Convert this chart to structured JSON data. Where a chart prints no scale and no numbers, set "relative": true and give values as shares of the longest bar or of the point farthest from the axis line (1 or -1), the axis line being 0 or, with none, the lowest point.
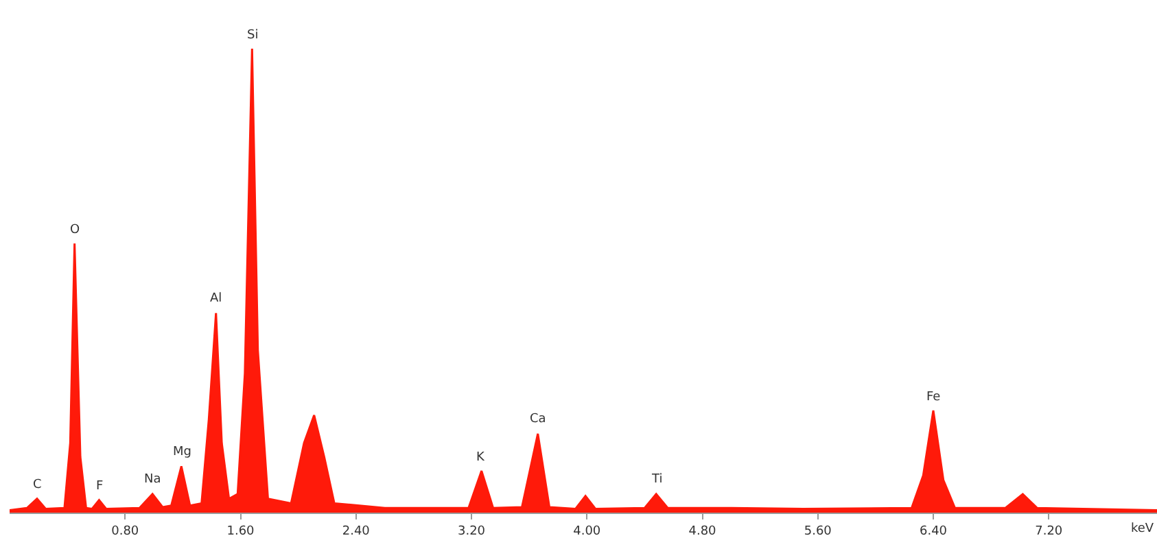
{
  "chart_data": {
    "type": "area",
    "relative": true,
    "xlabel": "keV",
    "color": "#ff1a0a",
    "x": [
      0.0,
      0.12,
      0.19,
      0.25,
      0.38,
      0.42,
      0.45,
      0.49,
      0.53,
      0.57,
      0.62,
      0.67,
      0.9,
      0.99,
      1.06,
      1.12,
      1.19,
      1.25,
      1.33,
      1.38,
      1.43,
      1.47,
      1.52,
      1.58,
      1.63,
      1.68,
      1.72,
      1.79,
      1.95,
      2.04,
      2.11,
      2.18,
      2.25,
      2.6,
      3.0,
      3.18,
      3.27,
      3.35,
      3.55,
      3.66,
      3.74,
      3.92,
      3.99,
      4.06,
      4.4,
      4.48,
      4.56,
      5.0,
      5.5,
      6.25,
      6.33,
      6.4,
      6.47,
      6.55,
      6.9,
      7.02,
      7.12,
      7.95
    ],
    "values": [
      0.005,
      0.01,
      0.03,
      0.008,
      0.01,
      0.15,
      0.58,
      0.12,
      0.01,
      0.008,
      0.027,
      0.008,
      0.01,
      0.04,
      0.012,
      0.015,
      0.1,
      0.015,
      0.02,
      0.2,
      0.43,
      0.15,
      0.03,
      0.04,
      0.3,
      1.0,
      0.35,
      0.03,
      0.02,
      0.15,
      0.21,
      0.12,
      0.02,
      0.01,
      0.01,
      0.01,
      0.09,
      0.01,
      0.012,
      0.17,
      0.012,
      0.008,
      0.036,
      0.008,
      0.01,
      0.04,
      0.01,
      0.01,
      0.008,
      0.01,
      0.08,
      0.22,
      0.07,
      0.01,
      0.01,
      0.04,
      0.01,
      0.005
    ],
    "xlim": [
      0,
      7.95
    ],
    "xticks": [
      {
        "value": 0.8,
        "label": "0.80"
      },
      {
        "value": 1.6,
        "label": "1.60"
      },
      {
        "value": 2.4,
        "label": "2.40"
      },
      {
        "value": 3.2,
        "label": "3.20"
      },
      {
        "value": 4.0,
        "label": "4.00"
      },
      {
        "value": 4.8,
        "label": "4.80"
      },
      {
        "value": 5.6,
        "label": "5.60"
      },
      {
        "value": 6.4,
        "label": "6.40"
      },
      {
        "value": 7.2,
        "label": "7.20"
      }
    ],
    "annotations": [
      {
        "text": "C",
        "x": 0.19,
        "y": 0.03
      },
      {
        "text": "O",
        "x": 0.45,
        "y": 0.58
      },
      {
        "text": "F",
        "x": 0.62,
        "y": 0.027
      },
      {
        "text": "Na",
        "x": 0.99,
        "y": 0.04
      },
      {
        "text": "Mg",
        "x": 1.19,
        "y": 0.1
      },
      {
        "text": "Al",
        "x": 1.43,
        "y": 0.43
      },
      {
        "text": "Si",
        "x": 1.68,
        "y": 1.0
      },
      {
        "text": "K",
        "x": 3.27,
        "y": 0.09
      },
      {
        "text": "Ca",
        "x": 3.66,
        "y": 0.17
      },
      {
        "text": "Ti",
        "x": 4.48,
        "y": 0.04
      },
      {
        "text": "Fe",
        "x": 6.4,
        "y": 0.22
      }
    ]
  }
}
